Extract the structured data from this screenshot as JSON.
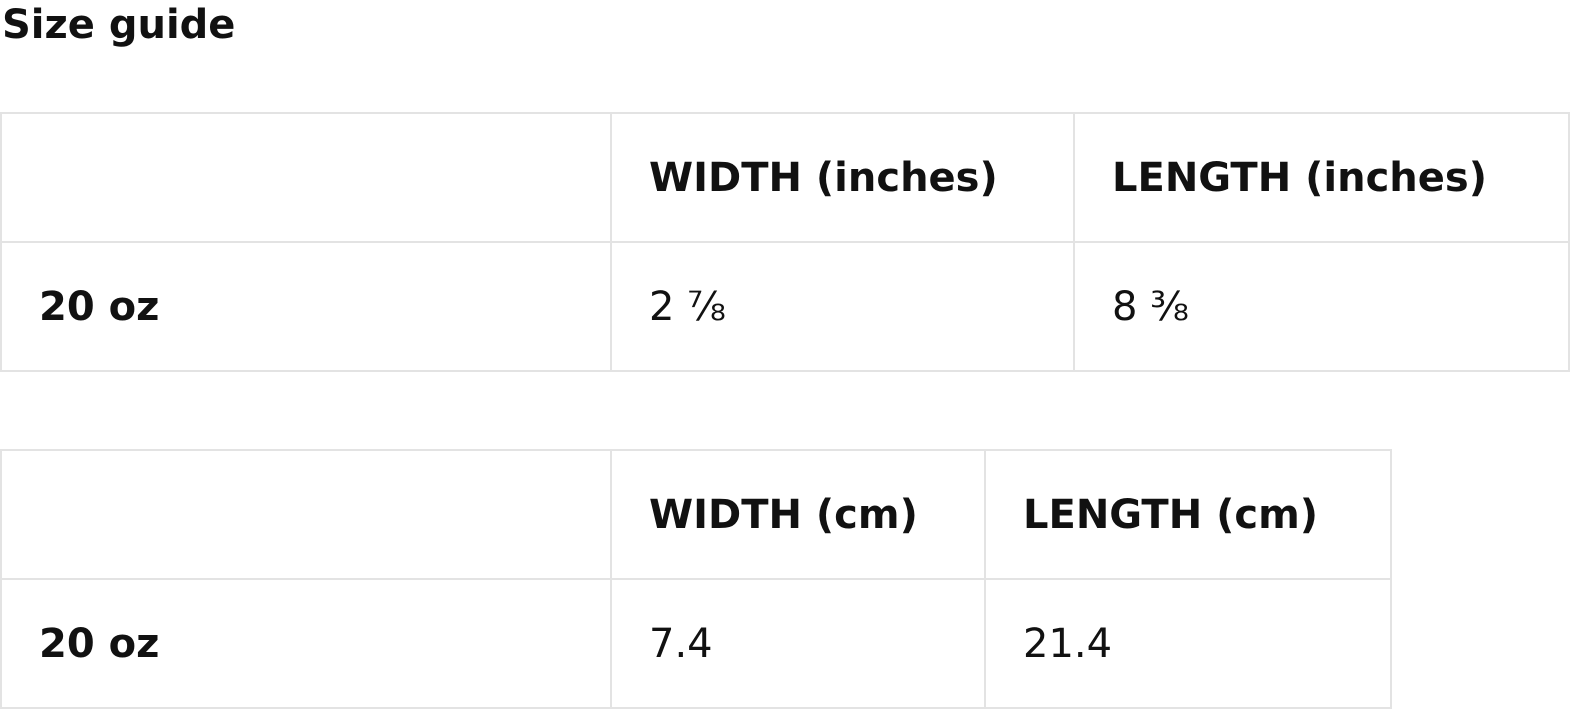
{
  "title": "Size guide",
  "tables": [
    {
      "headers": [
        "",
        "WIDTH (inches)",
        "LENGTH (inches)"
      ],
      "rows": [
        {
          "label": "20 oz",
          "width": "2 ⅞",
          "length": "8 ⅜"
        }
      ]
    },
    {
      "headers": [
        "",
        "WIDTH (cm)",
        "LENGTH (cm)"
      ],
      "rows": [
        {
          "label": "20 oz",
          "width": "7.4",
          "length": "21.4"
        }
      ]
    }
  ],
  "colors": {
    "text": "#111111",
    "border": "#e3e3e3",
    "background": "#ffffff"
  }
}
